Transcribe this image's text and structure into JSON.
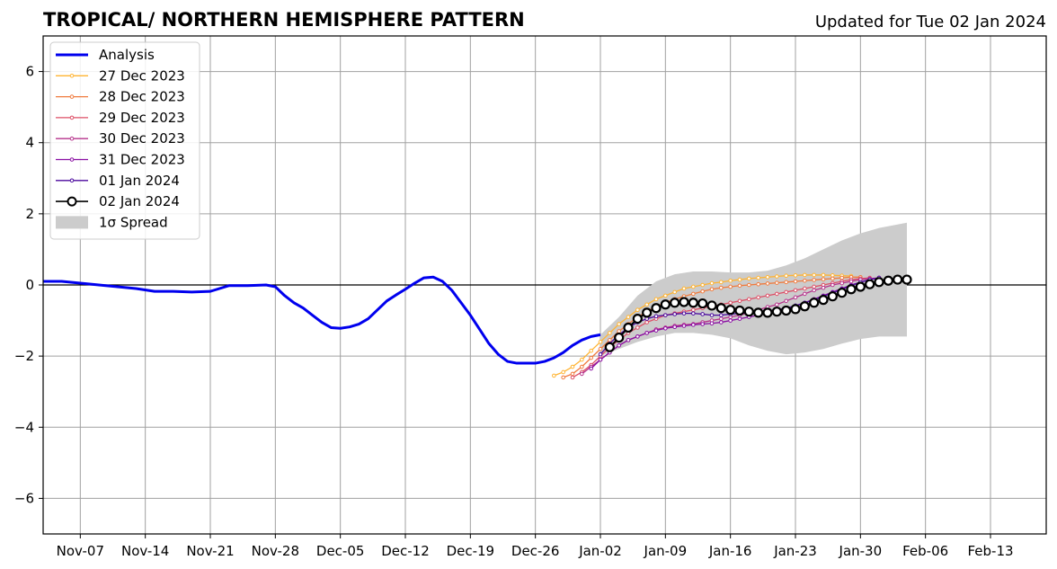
{
  "chart_data": {
    "type": "line",
    "title": "TROPICAL/ NORTHERN HEMISPHERE PATTERN",
    "subtitle": "Updated for Tue 02 Jan 2024",
    "x_ticks": [
      "Nov-07",
      "Nov-14",
      "Nov-21",
      "Nov-28",
      "Dec-05",
      "Dec-12",
      "Dec-19",
      "Dec-26",
      "Jan-02",
      "Jan-09",
      "Jan-16",
      "Jan-23",
      "Jan-30",
      "Feb-06",
      "Feb-13"
    ],
    "y_ticks": [
      "−6",
      "−4",
      "−2",
      "0",
      "2",
      "4",
      "6"
    ],
    "ylim": [
      -7,
      7
    ],
    "xlim": [
      "2023-11-03",
      "2024-02-19"
    ],
    "grid": true,
    "legend_position": "top-left",
    "analysis": {
      "name": "Analysis",
      "color": "#0000ee",
      "x": [
        "2023-11-03",
        "2023-11-05",
        "2023-11-07",
        "2023-11-09",
        "2023-11-11",
        "2023-11-13",
        "2023-11-15",
        "2023-11-17",
        "2023-11-19",
        "2023-11-21",
        "2023-11-23",
        "2023-11-25",
        "2023-11-27",
        "2023-11-28",
        "2023-11-29",
        "2023-11-30",
        "2023-12-01",
        "2023-12-02",
        "2023-12-03",
        "2023-12-04",
        "2023-12-05",
        "2023-12-06",
        "2023-12-07",
        "2023-12-08",
        "2023-12-10",
        "2023-12-11",
        "2023-12-12",
        "2023-12-13",
        "2023-12-14",
        "2023-12-15",
        "2023-12-16",
        "2023-12-17",
        "2023-12-18",
        "2023-12-19",
        "2023-12-20",
        "2023-12-21",
        "2023-12-22",
        "2023-12-23",
        "2023-12-24",
        "2023-12-25",
        "2023-12-26",
        "2023-12-27",
        "2023-12-28",
        "2023-12-29",
        "2023-12-30",
        "2023-12-31",
        "2024-01-01",
        "2024-01-02"
      ],
      "y": [
        0.1,
        0.1,
        0.05,
        0.0,
        -0.05,
        -0.1,
        -0.18,
        -0.18,
        -0.2,
        -0.18,
        -0.02,
        -0.02,
        0.0,
        -0.05,
        -0.3,
        -0.5,
        -0.65,
        -0.85,
        -1.05,
        -1.2,
        -1.22,
        -1.18,
        -1.1,
        -0.95,
        -0.45,
        -0.28,
        -0.12,
        0.05,
        0.2,
        0.22,
        0.1,
        -0.15,
        -0.5,
        -0.85,
        -1.25,
        -1.65,
        -1.95,
        -2.15,
        -2.2,
        -2.2,
        -2.2,
        -2.15,
        -2.05,
        -1.9,
        -1.7,
        -1.55,
        -1.45,
        -1.4
      ]
    },
    "series": [
      {
        "name": "27 Dec 2023",
        "color": "#ffb433",
        "x": [
          "2023-12-28",
          "2023-12-29",
          "2023-12-30",
          "2023-12-31",
          "2024-01-01",
          "2024-01-02",
          "2024-01-03",
          "2024-01-04",
          "2024-01-05",
          "2024-01-06",
          "2024-01-07",
          "2024-01-08",
          "2024-01-09",
          "2024-01-10",
          "2024-01-11",
          "2024-01-12",
          "2024-01-13",
          "2024-01-14",
          "2024-01-15",
          "2024-01-16",
          "2024-01-17",
          "2024-01-18",
          "2024-01-19",
          "2024-01-20",
          "2024-01-21",
          "2024-01-22",
          "2024-01-23",
          "2024-01-24",
          "2024-01-25",
          "2024-01-26",
          "2024-01-27",
          "2024-01-28",
          "2024-01-29"
        ],
        "y": [
          -2.55,
          -2.45,
          -2.3,
          -2.1,
          -1.85,
          -1.6,
          -1.35,
          -1.1,
          -0.9,
          -0.7,
          -0.55,
          -0.4,
          -0.3,
          -0.2,
          -0.1,
          -0.05,
          0.0,
          0.05,
          0.08,
          0.12,
          0.15,
          0.18,
          0.2,
          0.22,
          0.24,
          0.26,
          0.27,
          0.28,
          0.28,
          0.28,
          0.27,
          0.26,
          0.25
        ]
      },
      {
        "name": "28 Dec 2023",
        "color": "#f07b3e",
        "x": [
          "2023-12-29",
          "2023-12-30",
          "2023-12-31",
          "2024-01-01",
          "2024-01-02",
          "2024-01-03",
          "2024-01-04",
          "2024-01-05",
          "2024-01-06",
          "2024-01-07",
          "2024-01-08",
          "2024-01-09",
          "2024-01-10",
          "2024-01-11",
          "2024-01-12",
          "2024-01-13",
          "2024-01-14",
          "2024-01-15",
          "2024-01-16",
          "2024-01-17",
          "2024-01-18",
          "2024-01-19",
          "2024-01-20",
          "2024-01-21",
          "2024-01-22",
          "2024-01-23",
          "2024-01-24",
          "2024-01-25",
          "2024-01-26",
          "2024-01-27",
          "2024-01-28",
          "2024-01-29",
          "2024-01-30"
        ],
        "y": [
          -2.6,
          -2.5,
          -2.3,
          -2.05,
          -1.8,
          -1.55,
          -1.3,
          -1.1,
          -0.9,
          -0.75,
          -0.6,
          -0.5,
          -0.4,
          -0.32,
          -0.25,
          -0.18,
          -0.12,
          -0.08,
          -0.05,
          -0.02,
          0.0,
          0.02,
          0.04,
          0.06,
          0.08,
          0.1,
          0.12,
          0.14,
          0.16,
          0.18,
          0.2,
          0.22,
          0.22
        ]
      },
      {
        "name": "29 Dec 2023",
        "color": "#dd4f66",
        "x": [
          "2023-12-30",
          "2023-12-31",
          "2024-01-01",
          "2024-01-02",
          "2024-01-03",
          "2024-01-04",
          "2024-01-05",
          "2024-01-06",
          "2024-01-07",
          "2024-01-08",
          "2024-01-09",
          "2024-01-10",
          "2024-01-11",
          "2024-01-12",
          "2024-01-13",
          "2024-01-14",
          "2024-01-15",
          "2024-01-16",
          "2024-01-17",
          "2024-01-18",
          "2024-01-19",
          "2024-01-20",
          "2024-01-21",
          "2024-01-22",
          "2024-01-23",
          "2024-01-24",
          "2024-01-25",
          "2024-01-26",
          "2024-01-27",
          "2024-01-28",
          "2024-01-29",
          "2024-01-30",
          "2024-01-31"
        ],
        "y": [
          -2.6,
          -2.45,
          -2.25,
          -2.0,
          -1.75,
          -1.55,
          -1.35,
          -1.2,
          -1.05,
          -0.95,
          -0.85,
          -0.8,
          -0.75,
          -0.7,
          -0.65,
          -0.6,
          -0.55,
          -0.5,
          -0.45,
          -0.4,
          -0.35,
          -0.3,
          -0.25,
          -0.2,
          -0.15,
          -0.1,
          -0.05,
          0.0,
          0.05,
          0.1,
          0.15,
          0.18,
          0.2
        ]
      },
      {
        "name": "30 Dec 2023",
        "color": "#b6338c",
        "x": [
          "2023-12-31",
          "2024-01-01",
          "2024-01-02",
          "2024-01-03",
          "2024-01-04",
          "2024-01-05",
          "2024-01-06",
          "2024-01-07",
          "2024-01-08",
          "2024-01-09",
          "2024-01-10",
          "2024-01-11",
          "2024-01-12",
          "2024-01-13",
          "2024-01-14",
          "2024-01-15",
          "2024-01-16",
          "2024-01-17",
          "2024-01-18",
          "2024-01-19",
          "2024-01-20",
          "2024-01-21",
          "2024-01-22",
          "2024-01-23",
          "2024-01-24",
          "2024-01-25",
          "2024-01-26",
          "2024-01-27",
          "2024-01-28",
          "2024-01-29",
          "2024-01-30",
          "2024-01-31",
          "2024-02-01"
        ],
        "y": [
          -2.5,
          -2.3,
          -2.1,
          -1.9,
          -1.7,
          -1.55,
          -1.45,
          -1.35,
          -1.25,
          -1.2,
          -1.15,
          -1.12,
          -1.1,
          -1.05,
          -1.0,
          -0.95,
          -0.9,
          -0.85,
          -0.78,
          -0.7,
          -0.62,
          -0.55,
          -0.45,
          -0.35,
          -0.25,
          -0.15,
          -0.08,
          0.0,
          0.05,
          0.1,
          0.15,
          0.18,
          0.2
        ]
      },
      {
        "name": "31 Dec 2023",
        "color": "#8a0fa3",
        "x": [
          "2024-01-01",
          "2024-01-02",
          "2024-01-03",
          "2024-01-04",
          "2024-01-05",
          "2024-01-06",
          "2024-01-07",
          "2024-01-08",
          "2024-01-09",
          "2024-01-10",
          "2024-01-11",
          "2024-01-12",
          "2024-01-13",
          "2024-01-14",
          "2024-01-15",
          "2024-01-16",
          "2024-01-17",
          "2024-01-18",
          "2024-01-19",
          "2024-01-20",
          "2024-01-21",
          "2024-01-22",
          "2024-01-23",
          "2024-01-24",
          "2024-01-25",
          "2024-01-26",
          "2024-01-27",
          "2024-01-28",
          "2024-01-29",
          "2024-01-30",
          "2024-01-31",
          "2024-02-01"
        ],
        "y": [
          -2.35,
          -2.1,
          -1.9,
          -1.7,
          -1.55,
          -1.45,
          -1.35,
          -1.28,
          -1.22,
          -1.18,
          -1.15,
          -1.12,
          -1.1,
          -1.08,
          -1.05,
          -1.0,
          -0.95,
          -0.9,
          -0.85,
          -0.8,
          -0.75,
          -0.68,
          -0.6,
          -0.5,
          -0.4,
          -0.3,
          -0.2,
          -0.1,
          0.0,
          0.08,
          0.15,
          0.2
        ]
      },
      {
        "name": "01 Jan 2024",
        "color": "#4b0a9e",
        "x": [
          "2024-01-02",
          "2024-01-03",
          "2024-01-04",
          "2024-01-05",
          "2024-01-06",
          "2024-01-07",
          "2024-01-08",
          "2024-01-09",
          "2024-01-10",
          "2024-01-11",
          "2024-01-12",
          "2024-01-13",
          "2024-01-14",
          "2024-01-15",
          "2024-01-16",
          "2024-01-17",
          "2024-01-18",
          "2024-01-19",
          "2024-01-20",
          "2024-01-21",
          "2024-01-22",
          "2024-01-23",
          "2024-01-24",
          "2024-01-25",
          "2024-01-26",
          "2024-01-27",
          "2024-01-28",
          "2024-01-29",
          "2024-01-30",
          "2024-01-31",
          "2024-02-01"
        ],
        "y": [
          -1.95,
          -1.65,
          -1.4,
          -1.2,
          -1.05,
          -0.95,
          -0.88,
          -0.85,
          -0.82,
          -0.8,
          -0.8,
          -0.82,
          -0.85,
          -0.85,
          -0.82,
          -0.8,
          -0.78,
          -0.75,
          -0.72,
          -0.7,
          -0.65,
          -0.58,
          -0.5,
          -0.42,
          -0.32,
          -0.22,
          -0.12,
          -0.02,
          0.08,
          0.15,
          0.2
        ]
      },
      {
        "name": "02 Jan 2024",
        "color": "#000000",
        "marker": "open-circle",
        "x": [
          "2024-01-03",
          "2024-01-04",
          "2024-01-05",
          "2024-01-06",
          "2024-01-07",
          "2024-01-08",
          "2024-01-09",
          "2024-01-10",
          "2024-01-11",
          "2024-01-12",
          "2024-01-13",
          "2024-01-14",
          "2024-01-15",
          "2024-01-16",
          "2024-01-17",
          "2024-01-18",
          "2024-01-19",
          "2024-01-20",
          "2024-01-21",
          "2024-01-22",
          "2024-01-23",
          "2024-01-24",
          "2024-01-25",
          "2024-01-26",
          "2024-01-27",
          "2024-01-28",
          "2024-01-29",
          "2024-01-30",
          "2024-01-31",
          "2024-02-01",
          "2024-02-02",
          "2024-02-03",
          "2024-02-04"
        ],
        "y": [
          -1.75,
          -1.48,
          -1.2,
          -0.95,
          -0.78,
          -0.65,
          -0.55,
          -0.5,
          -0.48,
          -0.5,
          -0.52,
          -0.58,
          -0.65,
          -0.7,
          -0.72,
          -0.75,
          -0.78,
          -0.78,
          -0.75,
          -0.72,
          -0.68,
          -0.6,
          -0.5,
          -0.42,
          -0.32,
          -0.22,
          -0.12,
          -0.05,
          0.02,
          0.08,
          0.12,
          0.15,
          0.15
        ]
      }
    ],
    "spread": {
      "name": "1σ Spread",
      "color": "#cccccc",
      "x": [
        "2024-01-02",
        "2024-01-04",
        "2024-01-06",
        "2024-01-08",
        "2024-01-10",
        "2024-01-12",
        "2024-01-14",
        "2024-01-16",
        "2024-01-18",
        "2024-01-20",
        "2024-01-22",
        "2024-01-24",
        "2024-01-26",
        "2024-01-28",
        "2024-01-30",
        "2024-02-01",
        "2024-02-04"
      ],
      "upper": [
        -1.4,
        -0.9,
        -0.3,
        0.1,
        0.3,
        0.38,
        0.38,
        0.35,
        0.35,
        0.4,
        0.55,
        0.75,
        1.0,
        1.25,
        1.45,
        1.6,
        1.75
      ],
      "lower": [
        -2.0,
        -1.8,
        -1.6,
        -1.45,
        -1.35,
        -1.35,
        -1.4,
        -1.5,
        -1.7,
        -1.85,
        -1.95,
        -1.9,
        -1.8,
        -1.65,
        -1.52,
        -1.45,
        -1.45
      ]
    }
  }
}
